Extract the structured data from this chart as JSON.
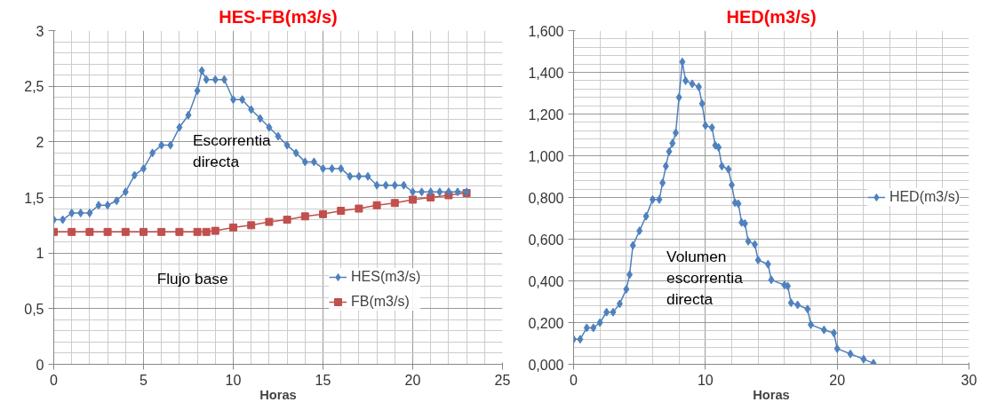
{
  "chart_data": [
    {
      "type": "line",
      "title": "HES-FB(m3/s)",
      "xlabel": "Horas",
      "xlim": [
        0,
        25
      ],
      "xticks": [
        0,
        5,
        10,
        15,
        20,
        25
      ],
      "ylim": [
        0,
        3
      ],
      "yticks": [
        0,
        {
          "value": 0.5,
          "label": "0,5"
        },
        1,
        {
          "value": 1.5,
          "label": "1,5"
        },
        2,
        {
          "value": 2.5,
          "label": "2,5"
        },
        3
      ],
      "grid": true,
      "legend": "bottom right",
      "line_style": "solid",
      "annotations": [
        "Escorrentia\ndirecta",
        "Flujo base"
      ],
      "series": [
        {
          "name": "HES(m3/s)",
          "color": "#4f81bd",
          "marker": "diamond",
          "x": [
            0,
            0.5,
            1,
            1.5,
            2,
            2.5,
            3,
            3.5,
            4,
            4.5,
            5,
            5.5,
            6,
            6.5,
            7,
            7.5,
            8,
            8.25,
            8.5,
            9,
            9.5,
            10,
            10.5,
            11,
            11.5,
            12,
            12.5,
            13,
            13.5,
            14,
            14.5,
            15,
            15.5,
            16,
            16.5,
            17,
            17.5,
            18,
            18.5,
            19,
            19.5,
            20,
            20.5,
            21,
            21.5,
            22,
            22.5,
            23
          ],
          "values": [
            1.3,
            1.3,
            1.36,
            1.36,
            1.36,
            1.43,
            1.43,
            1.47,
            1.55,
            1.7,
            1.76,
            1.9,
            1.97,
            1.97,
            2.13,
            2.24,
            2.46,
            2.64,
            2.56,
            2.56,
            2.56,
            2.38,
            2.38,
            2.29,
            2.21,
            2.13,
            2.05,
            1.97,
            1.9,
            1.82,
            1.82,
            1.76,
            1.76,
            1.76,
            1.69,
            1.69,
            1.69,
            1.61,
            1.61,
            1.61,
            1.61,
            1.55,
            1.55,
            1.55,
            1.55,
            1.55,
            1.55,
            1.55
          ]
        },
        {
          "name": "FB(m3/s)",
          "color": "#c0504d",
          "marker": "square",
          "x": [
            0,
            1,
            2,
            3,
            4,
            5,
            6,
            7,
            8,
            8.5,
            9,
            10,
            11,
            12,
            13,
            14,
            15,
            16,
            17,
            18,
            19,
            20,
            21,
            22,
            23
          ],
          "values": [
            1.19,
            1.19,
            1.19,
            1.19,
            1.19,
            1.19,
            1.19,
            1.19,
            1.19,
            1.19,
            1.2,
            1.23,
            1.25,
            1.28,
            1.3,
            1.33,
            1.35,
            1.38,
            1.4,
            1.43,
            1.45,
            1.48,
            1.5,
            1.52,
            1.54
          ]
        }
      ]
    },
    {
      "type": "line",
      "title": "HED(m3/s)",
      "xlabel": "Horas",
      "xlim": [
        0,
        30
      ],
      "xticks": [
        0,
        10,
        20,
        30
      ],
      "ylim": [
        0,
        1.6
      ],
      "yticks": [
        {
          "value": 0,
          "label": "0,000"
        },
        {
          "value": 0.2,
          "label": "0,200"
        },
        {
          "value": 0.4,
          "label": "0,400"
        },
        {
          "value": 0.6,
          "label": "0,600"
        },
        {
          "value": 0.8,
          "label": "0,800"
        },
        {
          "value": 1.0,
          "label": "1,000"
        },
        {
          "value": 1.2,
          "label": "1,200"
        },
        {
          "value": 1.4,
          "label": "1,400"
        },
        {
          "value": 1.6,
          "label": "1,600"
        }
      ],
      "grid": true,
      "legend": "right",
      "line_style": "solid",
      "annotations": [
        "Volumen\nescorrentia\ndirecta"
      ],
      "series": [
        {
          "name": "HED(m3/s)",
          "color": "#4f81bd",
          "marker": "diamond",
          "x": [
            0,
            0.5,
            1,
            1.5,
            2,
            2.5,
            3,
            3.5,
            4,
            4.25,
            4.5,
            5,
            5.5,
            6,
            6.5,
            6.75,
            7,
            7.25,
            7.5,
            7.75,
            8,
            8.25,
            8.5,
            9,
            9.5,
            9.75,
            10,
            10.5,
            10.75,
            11,
            11.25,
            11.75,
            12,
            12.25,
            12.5,
            12.75,
            13,
            13.25,
            13.75,
            14,
            14.75,
            15,
            16,
            16.25,
            16.5,
            17,
            17.75,
            18,
            19,
            19.75,
            20,
            21,
            22,
            22.75
          ],
          "values": [
            0.12,
            0.12,
            0.175,
            0.175,
            0.2,
            0.25,
            0.25,
            0.29,
            0.36,
            0.43,
            0.57,
            0.64,
            0.71,
            0.79,
            0.79,
            0.87,
            0.95,
            1.02,
            1.06,
            1.11,
            1.28,
            1.45,
            1.36,
            1.345,
            1.33,
            1.25,
            1.145,
            1.135,
            1.05,
            1.04,
            0.95,
            0.935,
            0.86,
            0.775,
            0.77,
            0.68,
            0.675,
            0.59,
            0.575,
            0.5,
            0.48,
            0.405,
            0.38,
            0.375,
            0.295,
            0.285,
            0.265,
            0.19,
            0.165,
            0.15,
            0.075,
            0.05,
            0.025,
            0.005
          ]
        }
      ]
    }
  ]
}
